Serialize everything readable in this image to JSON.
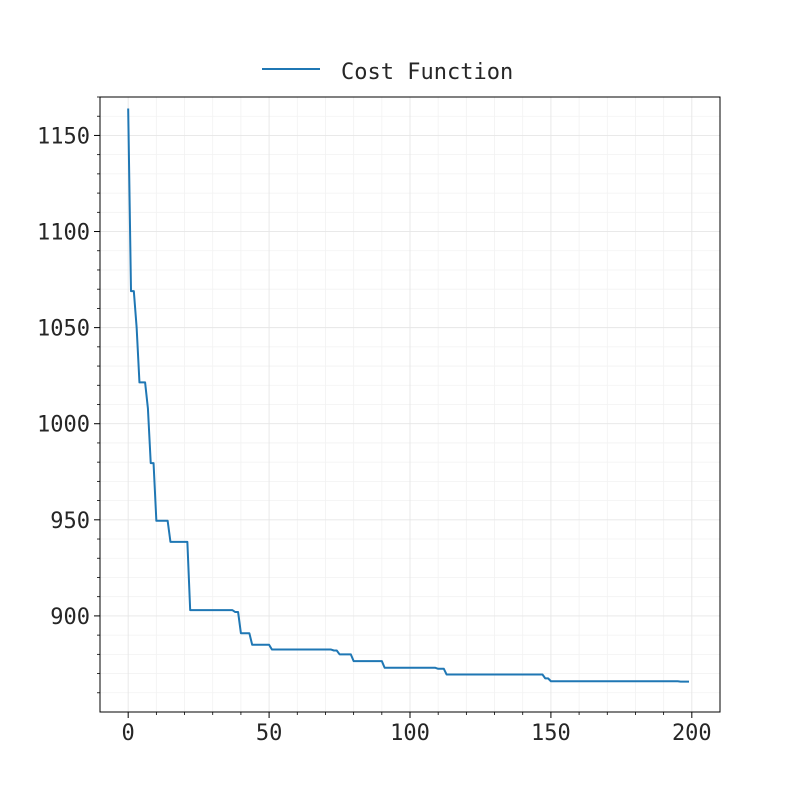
{
  "chart_data": {
    "type": "line",
    "title": "",
    "xlabel": "",
    "ylabel": "",
    "xlim": [
      -10,
      210
    ],
    "ylim": [
      850,
      1170
    ],
    "x_ticks": [
      0,
      50,
      100,
      150,
      200
    ],
    "y_ticks": [
      900,
      950,
      1000,
      1050,
      1100,
      1150
    ],
    "grid": true,
    "legend_position": "top-center",
    "series": [
      {
        "name": "Cost Function",
        "color": "#1f77b4",
        "points": [
          [
            0,
            1164
          ],
          [
            1,
            1069
          ],
          [
            2,
            1069
          ],
          [
            3,
            1050
          ],
          [
            4,
            1021.5
          ],
          [
            5,
            1021.5
          ],
          [
            6,
            1021.5
          ],
          [
            7,
            1008
          ],
          [
            8,
            979.5
          ],
          [
            9,
            979.5
          ],
          [
            10,
            949.5
          ],
          [
            11,
            949.5
          ],
          [
            12,
            949.5
          ],
          [
            13,
            949.5
          ],
          [
            14,
            949.5
          ],
          [
            15,
            938.5
          ],
          [
            16,
            938.5
          ],
          [
            17,
            938.5
          ],
          [
            18,
            938.5
          ],
          [
            19,
            938.5
          ],
          [
            20,
            938.5
          ],
          [
            21,
            938.5
          ],
          [
            22,
            903
          ],
          [
            23,
            903
          ],
          [
            24,
            903
          ],
          [
            25,
            903
          ],
          [
            26,
            903
          ],
          [
            27,
            903
          ],
          [
            28,
            903
          ],
          [
            29,
            903
          ],
          [
            30,
            903
          ],
          [
            31,
            903
          ],
          [
            32,
            903
          ],
          [
            33,
            903
          ],
          [
            34,
            903
          ],
          [
            35,
            903
          ],
          [
            36,
            903
          ],
          [
            37,
            903
          ],
          [
            38,
            902
          ],
          [
            39,
            902
          ],
          [
            40,
            891
          ],
          [
            41,
            891
          ],
          [
            42,
            891
          ],
          [
            43,
            891
          ],
          [
            44,
            885
          ],
          [
            45,
            885
          ],
          [
            46,
            885
          ],
          [
            47,
            885
          ],
          [
            48,
            885
          ],
          [
            49,
            885
          ],
          [
            50,
            885
          ],
          [
            51,
            882.5
          ],
          [
            52,
            882.5
          ],
          [
            53,
            882.5
          ],
          [
            54,
            882.5
          ],
          [
            55,
            882.5
          ],
          [
            56,
            882.5
          ],
          [
            57,
            882.5
          ],
          [
            58,
            882.5
          ],
          [
            59,
            882.5
          ],
          [
            60,
            882.5
          ],
          [
            61,
            882.5
          ],
          [
            62,
            882.5
          ],
          [
            63,
            882.5
          ],
          [
            64,
            882.5
          ],
          [
            65,
            882.5
          ],
          [
            66,
            882.5
          ],
          [
            67,
            882.5
          ],
          [
            68,
            882.5
          ],
          [
            69,
            882.5
          ],
          [
            70,
            882.5
          ],
          [
            71,
            882.5
          ],
          [
            72,
            882.5
          ],
          [
            73,
            882
          ],
          [
            74,
            882
          ],
          [
            75,
            880
          ],
          [
            76,
            880
          ],
          [
            77,
            880
          ],
          [
            78,
            880
          ],
          [
            79,
            880
          ],
          [
            80,
            876.5
          ],
          [
            81,
            876.5
          ],
          [
            82,
            876.5
          ],
          [
            83,
            876.5
          ],
          [
            84,
            876.5
          ],
          [
            85,
            876.5
          ],
          [
            86,
            876.5
          ],
          [
            87,
            876.5
          ],
          [
            88,
            876.5
          ],
          [
            89,
            876.5
          ],
          [
            90,
            876.5
          ],
          [
            91,
            873
          ],
          [
            92,
            873
          ],
          [
            93,
            873
          ],
          [
            94,
            873
          ],
          [
            95,
            873
          ],
          [
            96,
            873
          ],
          [
            97,
            873
          ],
          [
            98,
            873
          ],
          [
            99,
            873
          ],
          [
            100,
            873
          ],
          [
            101,
            873
          ],
          [
            102,
            873
          ],
          [
            103,
            873
          ],
          [
            104,
            873
          ],
          [
            105,
            873
          ],
          [
            106,
            873
          ],
          [
            107,
            873
          ],
          [
            108,
            873
          ],
          [
            109,
            873
          ],
          [
            110,
            872.5
          ],
          [
            111,
            872.5
          ],
          [
            112,
            872.5
          ],
          [
            113,
            869.5
          ],
          [
            114,
            869.5
          ],
          [
            115,
            869.5
          ],
          [
            116,
            869.5
          ],
          [
            117,
            869.5
          ],
          [
            118,
            869.5
          ],
          [
            119,
            869.5
          ],
          [
            120,
            869.5
          ],
          [
            125,
            869.5
          ],
          [
            130,
            869.5
          ],
          [
            135,
            869.5
          ],
          [
            140,
            869.5
          ],
          [
            145,
            869.5
          ],
          [
            147,
            869.5
          ],
          [
            148,
            867.5
          ],
          [
            149,
            867.5
          ],
          [
            150,
            866
          ],
          [
            151,
            866
          ],
          [
            155,
            866
          ],
          [
            160,
            866
          ],
          [
            165,
            866
          ],
          [
            170,
            866
          ],
          [
            175,
            866
          ],
          [
            180,
            866
          ],
          [
            185,
            866
          ],
          [
            190,
            866
          ],
          [
            194,
            866
          ],
          [
            195,
            866
          ],
          [
            196,
            865.8
          ],
          [
            199,
            865.8
          ]
        ]
      }
    ]
  }
}
